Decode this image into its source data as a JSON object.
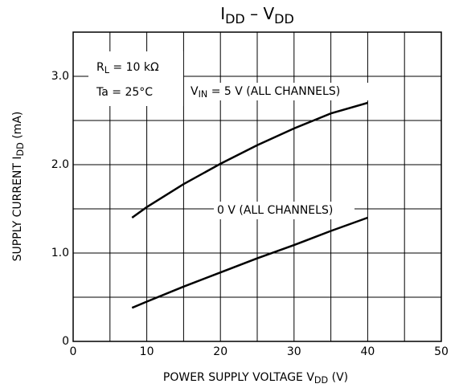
{
  "chart_data": {
    "type": "line",
    "title": [
      "I",
      "DD",
      "  –  V",
      "DD"
    ],
    "x_label": [
      "POWER SUPPLY VOLTAGE   V",
      "DD",
      "   (V)"
    ],
    "y_label": [
      "SUPPLY CURRENT   I",
      "DD",
      "   (mA)"
    ],
    "annotations": [
      [
        "R",
        "L",
        " = 10 kΩ"
      ],
      [
        "Ta = 25°C"
      ]
    ],
    "xlim": [
      0,
      50
    ],
    "ylim": [
      0,
      3.5
    ],
    "xticks": [
      0,
      10,
      20,
      30,
      40,
      50
    ],
    "yticks": [
      0,
      {
        "value": 1,
        "label": "1.0"
      },
      {
        "value": 2,
        "label": "2.0"
      },
      {
        "value": 3,
        "label": "3.0"
      }
    ],
    "x_minor_grid": [
      5,
      15,
      25,
      35,
      45
    ],
    "y_minor_grid": [
      0.5,
      1.5,
      2.5
    ],
    "grid": true,
    "series": [
      {
        "name": [
          "V",
          "IN",
          " = 5 V (ALL CHANNELS)"
        ],
        "color": "#000000",
        "x": [
          8,
          10,
          15,
          20,
          25,
          30,
          35,
          40
        ],
        "values": [
          1.4,
          1.52,
          1.78,
          2.01,
          2.22,
          2.41,
          2.58,
          2.7
        ]
      },
      {
        "name": [
          "0 V (ALL CHANNELS)"
        ],
        "color": "#000000",
        "x": [
          8,
          10,
          15,
          20,
          25,
          30,
          35,
          40
        ],
        "values": [
          0.38,
          0.45,
          0.62,
          0.78,
          0.94,
          1.09,
          1.25,
          1.4
        ]
      }
    ]
  }
}
